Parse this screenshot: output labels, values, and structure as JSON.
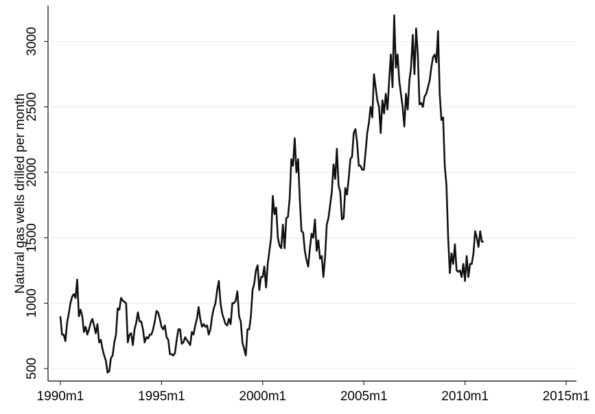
{
  "chart_data": {
    "type": "line",
    "y_label": "Natural gas wells drilled per month",
    "xlim": [
      352.7,
      666.1
    ],
    "xticks": [
      {
        "value": 360,
        "label": "1990m1"
      },
      {
        "value": 420,
        "label": "1995m1"
      },
      {
        "value": 480,
        "label": "2000m1"
      },
      {
        "value": 540,
        "label": "2005m1"
      },
      {
        "value": 600,
        "label": "2010m1"
      },
      {
        "value": 660,
        "label": "2015m1"
      }
    ],
    "ylim": [
      405,
      3275
    ],
    "yticks": [
      500,
      1000,
      1500,
      2000,
      2500,
      3000
    ],
    "grid": true,
    "x": [
      360,
      361,
      362,
      363,
      364,
      365,
      366,
      367,
      368,
      369,
      370,
      371,
      372,
      373,
      374,
      375,
      376,
      377,
      378,
      379,
      380,
      381,
      382,
      383,
      384,
      385,
      386,
      387,
      388,
      389,
      390,
      391,
      392,
      393,
      394,
      395,
      396,
      397,
      398,
      399,
      400,
      401,
      402,
      403,
      404,
      405,
      406,
      407,
      408,
      409,
      410,
      411,
      412,
      413,
      414,
      415,
      416,
      417,
      418,
      419,
      420,
      421,
      422,
      423,
      424,
      425,
      426,
      427,
      428,
      429,
      430,
      431,
      432,
      433,
      434,
      435,
      436,
      437,
      438,
      439,
      440,
      441,
      442,
      443,
      444,
      445,
      446,
      447,
      448,
      449,
      450,
      451,
      452,
      453,
      454,
      455,
      456,
      457,
      458,
      459,
      460,
      461,
      462,
      463,
      464,
      465,
      466,
      467,
      468,
      469,
      470,
      471,
      472,
      473,
      474,
      475,
      476,
      477,
      478,
      479,
      480,
      481,
      482,
      483,
      484,
      485,
      486,
      487,
      488,
      489,
      490,
      491,
      492,
      493,
      494,
      495,
      496,
      497,
      498,
      499,
      500,
      501,
      502,
      503,
      504,
      505,
      506,
      507,
      508,
      509,
      510,
      511,
      512,
      513,
      514,
      515,
      516,
      517,
      518,
      519,
      520,
      521,
      522,
      523,
      524,
      525,
      526,
      527,
      528,
      529,
      530,
      531,
      532,
      533,
      534,
      535,
      536,
      537,
      538,
      539,
      540,
      541,
      542,
      543,
      544,
      545,
      546,
      547,
      548,
      549,
      550,
      551,
      552,
      553,
      554,
      555,
      556,
      557,
      558,
      559,
      560,
      561,
      562,
      563,
      564,
      565,
      566,
      567,
      568,
      569,
      570,
      571,
      572,
      573,
      574,
      575,
      576,
      577,
      578,
      579,
      580,
      581,
      582,
      583,
      584,
      585,
      586,
      587,
      588,
      589,
      590,
      591,
      592,
      593,
      594,
      595,
      596,
      597,
      598,
      599,
      600,
      601,
      602,
      603,
      604,
      605,
      606,
      607,
      608,
      609,
      610,
      611
    ],
    "series": [
      {
        "color": "#111111",
        "values": [
          900,
          760,
          760,
          710,
          850,
          920,
          1000,
          1050,
          1070,
          1040,
          1180,
          900,
          950,
          900,
          780,
          820,
          760,
          800,
          850,
          880,
          830,
          770,
          840,
          700,
          720,
          650,
          600,
          560,
          470,
          480,
          580,
          600,
          700,
          760,
          960,
          950,
          1040,
          1020,
          1010,
          1000,
          700,
          760,
          770,
          680,
          800,
          850,
          930,
          860,
          860,
          800,
          700,
          740,
          730,
          760,
          760,
          800,
          860,
          940,
          930,
          880,
          820,
          800,
          830,
          740,
          720,
          610,
          610,
          600,
          620,
          720,
          800,
          800,
          690,
          700,
          740,
          720,
          700,
          680,
          780,
          760,
          830,
          880,
          970,
          880,
          820,
          840,
          820,
          830,
          760,
          800,
          900,
          960,
          1000,
          1100,
          1170,
          1000,
          920,
          880,
          840,
          830,
          880,
          840,
          1000,
          1000,
          1020,
          1090,
          900,
          860,
          700,
          650,
          600,
          800,
          800,
          900,
          1100,
          1150,
          1250,
          1290,
          1100,
          1200,
          1200,
          1280,
          1120,
          1300,
          1400,
          1500,
          1820,
          1680,
          1730,
          1500,
          1440,
          1420,
          1600,
          1420,
          1650,
          1660,
          1800,
          2100,
          2050,
          2260,
          2000,
          2100,
          1800,
          1550,
          1540,
          1400,
          1330,
          1280,
          1420,
          1530,
          1500,
          1640,
          1400,
          1480,
          1340,
          1360,
          1200,
          1350,
          1600,
          1650,
          1750,
          1850,
          2060,
          1950,
          2180,
          1900,
          1850,
          1640,
          1650,
          1880,
          1830,
          1950,
          2100,
          2120,
          2300,
          2330,
          2230,
          2050,
          2050,
          2020,
          2020,
          2150,
          2300,
          2380,
          2500,
          2420,
          2750,
          2650,
          2550,
          2500,
          2300,
          2550,
          2450,
          2600,
          2480,
          2700,
          2900,
          2650,
          3200,
          2800,
          2900,
          2700,
          2600,
          2500,
          2350,
          2600,
          2480,
          2700,
          2800,
          3050,
          2750,
          3100,
          2900,
          2520,
          2530,
          2500,
          2580,
          2600,
          2650,
          2700,
          2800,
          2880,
          2900,
          2840,
          3080,
          2600,
          2400,
          2420,
          2050,
          1900,
          1500,
          1230,
          1380,
          1300,
          1450,
          1250,
          1240,
          1250,
          1200,
          1300,
          1170,
          1360,
          1200,
          1300,
          1300,
          1380,
          1550,
          1500,
          1430,
          1550,
          1470,
          1470
        ]
      }
    ]
  }
}
